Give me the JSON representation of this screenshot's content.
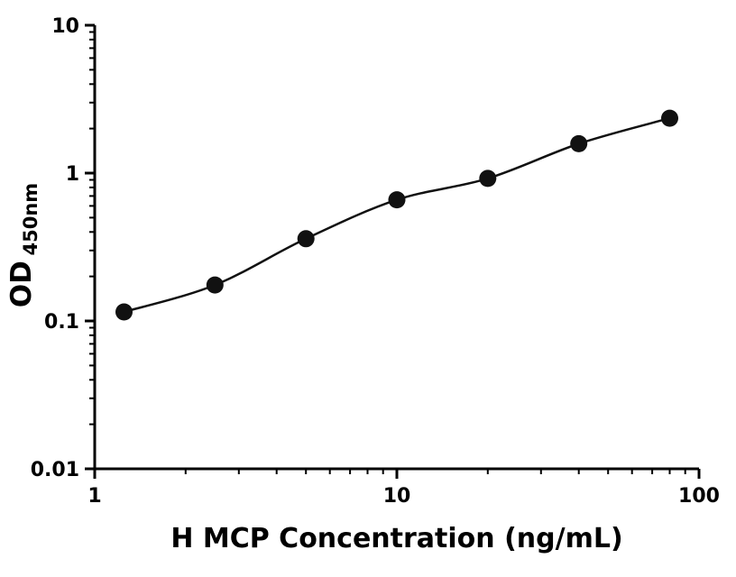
{
  "figure": {
    "background": "#ffffff"
  },
  "chart_data": {
    "type": "scatter",
    "title": "",
    "xlabel": "H MCP Concentration (ng/mL)",
    "ylabel": "OD",
    "ylabel_subscript": "450nm",
    "xscale": "log",
    "yscale": "log",
    "xlim": [
      1,
      100
    ],
    "ylim": [
      0.01,
      10
    ],
    "x": [
      1.25,
      2.5,
      5,
      10,
      20,
      40,
      80
    ],
    "y": [
      0.115,
      0.175,
      0.36,
      0.66,
      0.92,
      1.58,
      2.35
    ],
    "x_major_ticks": [
      1,
      10,
      100
    ],
    "x_tick_labels": [
      "1",
      "10",
      "100"
    ],
    "y_major_ticks": [
      0.01,
      0.1,
      1,
      10
    ],
    "y_tick_labels": [
      "0.01",
      "0.1",
      "1",
      "10"
    ],
    "grid": false,
    "legend": false,
    "marker": "filled-circle",
    "marker_color": "#111111",
    "line_color": "#111111",
    "axis_color": "#000000",
    "curve_style": "smooth-fit-through-points"
  }
}
